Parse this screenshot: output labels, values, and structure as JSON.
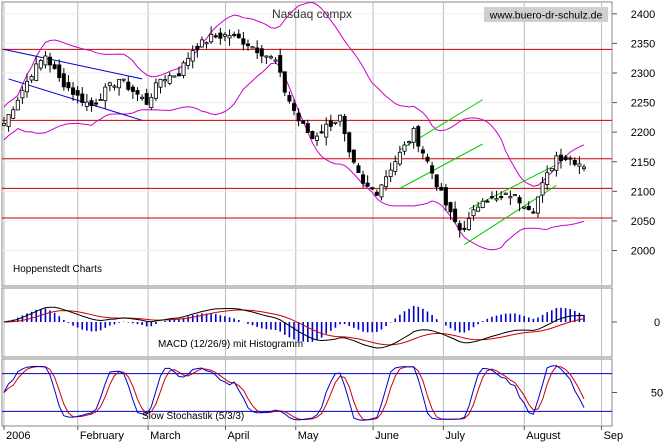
{
  "chart_data": {
    "type": "candlestick",
    "title": "Nasdaq compx",
    "watermark": "www.buero-dr-schulz.de",
    "source_label": "Hoppenstedt Charts",
    "x_tick_labels": [
      "2006",
      "February",
      "March",
      "April",
      "May",
      "June",
      "July",
      "August",
      "Sep"
    ],
    "price_panel": {
      "ylim": [
        1940,
        2420
      ],
      "y_ticks": [
        2000,
        2050,
        2100,
        2150,
        2200,
        2250,
        2300,
        2350,
        2400
      ],
      "horizontal_lines": [
        2340,
        2220,
        2155,
        2105,
        2055
      ],
      "line_color": "#cc0000",
      "bollinger_color": "#cc00cc",
      "trend_colors": {
        "channel_down": "#0000cc",
        "channel_up": "#00cc00"
      },
      "anchors": [
        [
          0,
          2215
        ],
        [
          6,
          2300
        ],
        [
          9,
          2330
        ],
        [
          12,
          2290
        ],
        [
          16,
          2260
        ],
        [
          19,
          2245
        ],
        [
          22,
          2270
        ],
        [
          25,
          2290
        ],
        [
          28,
          2270
        ],
        [
          31,
          2250
        ],
        [
          34,
          2290
        ],
        [
          38,
          2300
        ],
        [
          41,
          2340
        ],
        [
          45,
          2360
        ],
        [
          49,
          2365
        ],
        [
          53,
          2350
        ],
        [
          56,
          2335
        ],
        [
          59,
          2320
        ],
        [
          61,
          2270
        ],
        [
          64,
          2220
        ],
        [
          67,
          2190
        ],
        [
          70,
          2210
        ],
        [
          73,
          2225
        ],
        [
          75,
          2160
        ],
        [
          78,
          2110
        ],
        [
          81,
          2100
        ],
        [
          84,
          2140
        ],
        [
          87,
          2175
        ],
        [
          89,
          2200
        ],
        [
          92,
          2150
        ],
        [
          95,
          2095
        ],
        [
          97,
          2060
        ],
        [
          99,
          2035
        ],
        [
          101,
          2050
        ],
        [
          104,
          2090
        ],
        [
          107,
          2085
        ],
        [
          110,
          2095
        ],
        [
          113,
          2080
        ],
        [
          115,
          2070
        ],
        [
          117,
          2110
        ],
        [
          120,
          2160
        ],
        [
          123,
          2155
        ],
        [
          126,
          2145
        ]
      ]
    },
    "macd_panel": {
      "label": "MACD (12/26/9) mit Histogramm",
      "y_ticks": [
        0
      ],
      "line_colors": {
        "macd": "#000000",
        "signal": "#cc0000",
        "histogram": "#0000cc"
      }
    },
    "stochastic_panel": {
      "label": "Slow Stochastik (5/3/3)",
      "y_ticks": [
        50
      ],
      "line_colors": {
        "k": "#0000cc",
        "d": "#cc0000"
      }
    }
  }
}
